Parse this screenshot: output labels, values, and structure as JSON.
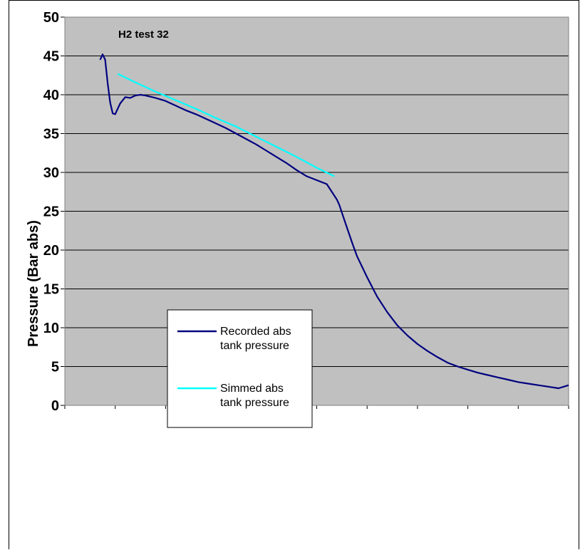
{
  "chart_data": {
    "type": "line",
    "title": "H2 test 32",
    "xlabel": "",
    "ylabel": "Pressure (Bar abs)",
    "ylim": [
      0,
      50
    ],
    "yticks": [
      "0",
      "5",
      "10",
      "15",
      "20",
      "25",
      "30",
      "35",
      "40",
      "45",
      "50"
    ],
    "xlim": [
      0,
      10
    ],
    "x_tick_count": 11,
    "grid": "horizontal",
    "legend_position": "lower-left inside plot",
    "series": [
      {
        "name": "Recorded abs tank pressure",
        "color": "#000080",
        "x": [
          0.7,
          0.75,
          0.8,
          0.85,
          0.9,
          0.95,
          1.0,
          1.05,
          1.1,
          1.2,
          1.3,
          1.4,
          1.5,
          1.6,
          1.8,
          2.0,
          2.2,
          2.4,
          2.6,
          2.8,
          3.0,
          3.2,
          3.4,
          3.6,
          3.8,
          4.0,
          4.2,
          4.4,
          4.6,
          4.8,
          5.0,
          5.2,
          5.4,
          5.45,
          5.5,
          5.6,
          5.7,
          5.8,
          6.0,
          6.2,
          6.4,
          6.6,
          6.8,
          7.0,
          7.2,
          7.4,
          7.6,
          7.8,
          8.0,
          8.2,
          8.4,
          8.6,
          8.8,
          9.0,
          9.2,
          9.4,
          9.6,
          9.8,
          10.0
        ],
        "y": [
          44.5,
          45.2,
          44.5,
          41.5,
          39.0,
          37.6,
          37.5,
          38.2,
          38.9,
          39.7,
          39.6,
          39.9,
          40.0,
          39.9,
          39.6,
          39.2,
          38.6,
          38.0,
          37.5,
          36.9,
          36.3,
          35.7,
          35.0,
          34.3,
          33.6,
          32.8,
          32.0,
          31.2,
          30.3,
          29.5,
          29.0,
          28.5,
          26.5,
          25.8,
          24.8,
          22.9,
          21.0,
          19.2,
          16.5,
          14.0,
          12.0,
          10.3,
          9.0,
          7.9,
          7.0,
          6.2,
          5.5,
          5.0,
          4.6,
          4.2,
          3.9,
          3.6,
          3.3,
          3.0,
          2.8,
          2.6,
          2.4,
          2.2,
          2.6
        ]
      },
      {
        "name": "Simmed abs tank pressure",
        "color": "#00FFFF",
        "x": [
          1.05,
          1.4,
          1.8,
          2.2,
          2.6,
          3.0,
          3.4,
          3.8,
          4.2,
          4.6,
          5.0,
          5.35
        ],
        "y": [
          42.7,
          41.6,
          40.4,
          39.3,
          38.2,
          37.0,
          35.9,
          34.6,
          33.3,
          32.0,
          30.6,
          29.5
        ]
      }
    ]
  }
}
